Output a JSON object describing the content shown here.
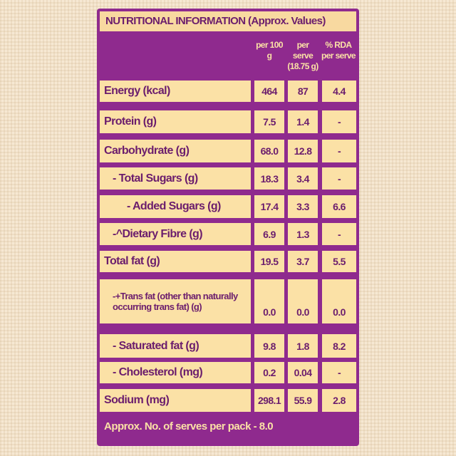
{
  "title": "NUTRITIONAL INFORMATION (Approx. Values)",
  "columns": [
    "per 100 g",
    "per serve (18.75 g)",
    "% RDA per serve"
  ],
  "rows": [
    {
      "label": "Energy (kcal)",
      "values": [
        "464",
        "87",
        "4.4"
      ]
    },
    {
      "label": "Protein (g)",
      "values": [
        "7.5",
        "1.4",
        "-"
      ]
    },
    {
      "label": "Carbohydrate (g)",
      "values": [
        "68.0",
        "12.8",
        "-"
      ]
    },
    {
      "label": "- Total Sugars (g)",
      "values": [
        "18.3",
        "3.4",
        "-"
      ]
    },
    {
      "label": "- Added Sugars (g)",
      "values": [
        "17.4",
        "3.3",
        "6.6"
      ]
    },
    {
      "label": "-^Dietary Fibre (g)",
      "values": [
        "6.9",
        "1.3",
        "-"
      ]
    },
    {
      "label": "Total fat (g)",
      "values": [
        "19.5",
        "3.7",
        "5.5"
      ]
    },
    {
      "label": "-+Trans fat (other than naturally occurring trans fat) (g)",
      "values": [
        "0.0",
        "0.0",
        "0.0"
      ]
    },
    {
      "label": "- Saturated fat (g)",
      "values": [
        "9.8",
        "1.8",
        "8.2"
      ]
    },
    {
      "label": "- Cholesterol (mg)",
      "values": [
        "0.2",
        "0.04",
        "-"
      ]
    },
    {
      "label": "Sodium (mg)",
      "values": [
        "298.1",
        "55.9",
        "2.8"
      ]
    }
  ],
  "footer": "Approx. No. of serves per pack - 8.0"
}
